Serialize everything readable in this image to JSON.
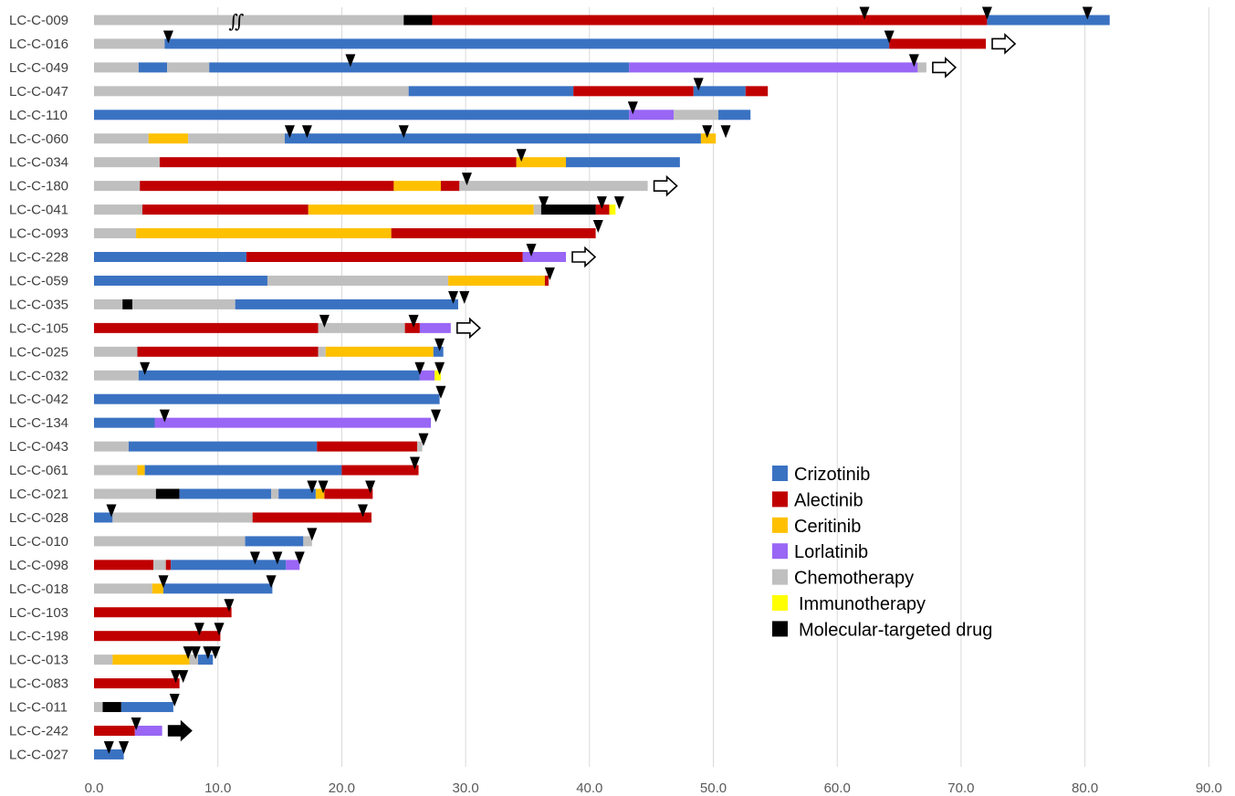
{
  "chart_data": {
    "type": "bar",
    "orientation": "horizontal-stacked",
    "title": "",
    "xlabel": "",
    "ylabel": "",
    "xlim": [
      0,
      90
    ],
    "x_ticks": [
      "0.0",
      "10.0",
      "20.0",
      "30.0",
      "40.0",
      "50.0",
      "60.0",
      "70.0",
      "80.0",
      "90.0"
    ],
    "grid": "vertical",
    "legend_position": "center-right",
    "colors": {
      "Crizotinib": "#3a72c2",
      "Alectinib": "#c00000",
      "Ceritinib": "#ffc000",
      "Lorlatinib": "#9966f5",
      "Chemotherapy": "#bfbfbf",
      "Immunotherapy": "#ffff00",
      "Molecular-targeted drug": "#000000"
    },
    "legend": [
      "Crizotinib",
      "Alectinib",
      "Ceritinib",
      "Lorlatinib",
      "Chemotherapy",
      "Immunotherapy",
      "Molecular-targeted drug"
    ],
    "break_mark": {
      "row": "LC-C-009",
      "x": 11.5,
      "text": "∬"
    },
    "patients": [
      {
        "id": "LC-C-009",
        "segments": [
          [
            "Chemotherapy",
            0,
            25
          ],
          [
            "Molecular-targeted drug",
            25,
            27.3
          ],
          [
            "Alectinib",
            27.3,
            72.1
          ],
          [
            "Crizotinib",
            72.1,
            82
          ]
        ],
        "markers": [
          62.2,
          72.1,
          80.2
        ],
        "arrow": null
      },
      {
        "id": "LC-C-016",
        "segments": [
          [
            "Chemotherapy",
            0,
            5.7
          ],
          [
            "Crizotinib",
            5.7,
            64.2
          ],
          [
            "Alectinib",
            64.2,
            72
          ]
        ],
        "markers": [
          6,
          64.2
        ],
        "arrow": "open"
      },
      {
        "id": "LC-C-049",
        "segments": [
          [
            "Chemotherapy",
            0,
            3.6
          ],
          [
            "Crizotinib",
            3.6,
            5.9
          ],
          [
            "Chemotherapy",
            5.9,
            9.3
          ],
          [
            "Crizotinib",
            9.3,
            43.2
          ],
          [
            "Lorlatinib",
            43.2,
            66.5
          ],
          [
            "Chemotherapy",
            66.5,
            67.2
          ]
        ],
        "markers": [
          20.7,
          66.2
        ],
        "arrow": "open"
      },
      {
        "id": "LC-C-047",
        "segments": [
          [
            "Chemotherapy",
            0,
            25.4
          ],
          [
            "Crizotinib",
            25.4,
            38.7
          ],
          [
            "Alectinib",
            38.7,
            48.4
          ],
          [
            "Crizotinib",
            48.4,
            52.6
          ],
          [
            "Alectinib",
            52.6,
            54.4
          ]
        ],
        "markers": [
          48.8
        ],
        "arrow": null
      },
      {
        "id": "LC-C-110",
        "segments": [
          [
            "Crizotinib",
            0,
            43.2
          ],
          [
            "Lorlatinib",
            43.2,
            46.8
          ],
          [
            "Chemotherapy",
            46.8,
            50.4
          ],
          [
            "Crizotinib",
            50.4,
            53
          ]
        ],
        "markers": [
          43.5
        ],
        "arrow": null
      },
      {
        "id": "LC-C-060",
        "segments": [
          [
            "Chemotherapy",
            0,
            4.4
          ],
          [
            "Ceritinib",
            4.4,
            7.6
          ],
          [
            "Chemotherapy",
            7.6,
            15.4
          ],
          [
            "Crizotinib",
            15.4,
            49
          ],
          [
            "Ceritinib",
            49,
            50.2
          ]
        ],
        "markers": [
          15.8,
          17.2,
          25,
          49.5,
          51
        ],
        "arrow": null
      },
      {
        "id": "LC-C-034",
        "segments": [
          [
            "Chemotherapy",
            0,
            5.3
          ],
          [
            "Alectinib",
            5.3,
            34.1
          ],
          [
            "Ceritinib",
            34.1,
            38.1
          ],
          [
            "Crizotinib",
            38.1,
            47.3
          ]
        ],
        "markers": [
          34.5
        ],
        "arrow": null
      },
      {
        "id": "LC-C-180",
        "segments": [
          [
            "Chemotherapy",
            0,
            3.7
          ],
          [
            "Alectinib",
            3.7,
            24.2
          ],
          [
            "Ceritinib",
            24.2,
            28
          ],
          [
            "Alectinib",
            28,
            29.5
          ],
          [
            "Chemotherapy",
            29.5,
            44.7
          ]
        ],
        "markers": [
          30.1
        ],
        "arrow": "open"
      },
      {
        "id": "LC-C-041",
        "segments": [
          [
            "Chemotherapy",
            0,
            3.9
          ],
          [
            "Alectinib",
            3.9,
            17.3
          ],
          [
            "Ceritinib",
            17.3,
            35.5
          ],
          [
            "Chemotherapy",
            35.5,
            36.1
          ],
          [
            "Molecular-targeted drug",
            36.1,
            40.5
          ],
          [
            "Alectinib",
            40.5,
            41.6
          ],
          [
            "Immunotherapy",
            41.6,
            42.1
          ]
        ],
        "markers": [
          36.3,
          41,
          42.4
        ],
        "arrow": null
      },
      {
        "id": "LC-C-093",
        "segments": [
          [
            "Chemotherapy",
            0,
            3.4
          ],
          [
            "Ceritinib",
            3.4,
            24
          ],
          [
            "Alectinib",
            24,
            40.5
          ]
        ],
        "markers": [
          40.7
        ],
        "arrow": null
      },
      {
        "id": "LC-C-228",
        "segments": [
          [
            "Crizotinib",
            0,
            12.3
          ],
          [
            "Alectinib",
            12.3,
            34.6
          ],
          [
            "Lorlatinib",
            34.6,
            38.1
          ]
        ],
        "markers": [
          35.3
        ],
        "arrow": "open"
      },
      {
        "id": "LC-C-059",
        "segments": [
          [
            "Crizotinib",
            0,
            14
          ],
          [
            "Chemotherapy",
            14,
            28.6
          ],
          [
            "Ceritinib",
            28.6,
            36.4
          ],
          [
            "Alectinib",
            36.4,
            36.7
          ]
        ],
        "markers": [
          36.8
        ],
        "arrow": null
      },
      {
        "id": "LC-C-035",
        "segments": [
          [
            "Chemotherapy",
            0,
            2.3
          ],
          [
            "Molecular-targeted drug",
            2.3,
            3.1
          ],
          [
            "Chemotherapy",
            3.1,
            11.4
          ],
          [
            "Crizotinib",
            11.4,
            29.4
          ]
        ],
        "markers": [
          29,
          29.9
        ],
        "arrow": null
      },
      {
        "id": "LC-C-105",
        "segments": [
          [
            "Alectinib",
            0,
            18.1
          ],
          [
            "Chemotherapy",
            18.1,
            25.1
          ],
          [
            "Alectinib",
            25.1,
            26.3
          ],
          [
            "Lorlatinib",
            26.3,
            28.8
          ]
        ],
        "markers": [
          18.6,
          25.8
        ],
        "arrow": "open"
      },
      {
        "id": "LC-C-025",
        "segments": [
          [
            "Chemotherapy",
            0,
            3.5
          ],
          [
            "Alectinib",
            3.5,
            18.1
          ],
          [
            "Chemotherapy",
            18.1,
            18.7
          ],
          [
            "Ceritinib",
            18.7,
            27.4
          ],
          [
            "Crizotinib",
            27.4,
            28.2
          ]
        ],
        "markers": [
          27.9
        ],
        "arrow": null
      },
      {
        "id": "LC-C-032",
        "segments": [
          [
            "Chemotherapy",
            0,
            3.6
          ],
          [
            "Crizotinib",
            3.6,
            26.3
          ],
          [
            "Lorlatinib",
            26.3,
            27.5
          ],
          [
            "Immunotherapy",
            27.5,
            28
          ]
        ],
        "markers": [
          4.1,
          26.3,
          27.9
        ],
        "arrow": null
      },
      {
        "id": "LC-C-042",
        "segments": [
          [
            "Crizotinib",
            0,
            27.9
          ]
        ],
        "markers": [
          28
        ],
        "arrow": null
      },
      {
        "id": "LC-C-134",
        "segments": [
          [
            "Crizotinib",
            0,
            4.9
          ],
          [
            "Lorlatinib",
            4.9,
            27.2
          ]
        ],
        "markers": [
          5.7,
          27.6
        ],
        "arrow": null
      },
      {
        "id": "LC-C-043",
        "segments": [
          [
            "Chemotherapy",
            0,
            2.8
          ],
          [
            "Crizotinib",
            2.8,
            18
          ],
          [
            "Alectinib",
            18,
            26.1
          ],
          [
            "Chemotherapy",
            26.1,
            26.5
          ]
        ],
        "markers": [
          26.6
        ],
        "arrow": null
      },
      {
        "id": "LC-C-061",
        "segments": [
          [
            "Chemotherapy",
            0,
            3.5
          ],
          [
            "Ceritinib",
            3.5,
            4.1
          ],
          [
            "Crizotinib",
            4.1,
            20
          ],
          [
            "Alectinib",
            20,
            26.2
          ]
        ],
        "markers": [
          25.9
        ],
        "arrow": null
      },
      {
        "id": "LC-C-021",
        "segments": [
          [
            "Chemotherapy",
            0,
            5
          ],
          [
            "Molecular-targeted drug",
            5,
            6.9
          ],
          [
            "Crizotinib",
            6.9,
            14.3
          ],
          [
            "Chemotherapy",
            14.3,
            14.9
          ],
          [
            "Crizotinib",
            14.9,
            17.9
          ],
          [
            "Ceritinib",
            17.9,
            18.6
          ],
          [
            "Alectinib",
            18.6,
            22.5
          ]
        ],
        "markers": [
          17.6,
          18.5,
          22.3
        ],
        "arrow": null
      },
      {
        "id": "LC-C-028",
        "segments": [
          [
            "Crizotinib",
            0,
            1.5
          ],
          [
            "Chemotherapy",
            1.5,
            12.8
          ],
          [
            "Alectinib",
            12.8,
            22.4
          ]
        ],
        "markers": [
          1.4,
          21.7
        ],
        "arrow": null
      },
      {
        "id": "LC-C-010",
        "segments": [
          [
            "Chemotherapy",
            0,
            12.2
          ],
          [
            "Crizotinib",
            12.2,
            16.9
          ],
          [
            "Chemotherapy",
            16.9,
            17.6
          ]
        ],
        "markers": [
          17.6
        ],
        "arrow": null
      },
      {
        "id": "LC-C-098",
        "segments": [
          [
            "Alectinib",
            0,
            4.8
          ],
          [
            "Chemotherapy",
            4.8,
            5.8
          ],
          [
            "Alectinib",
            5.8,
            6.2
          ],
          [
            "Crizotinib",
            6.2,
            15.5
          ],
          [
            "Lorlatinib",
            15.5,
            16.6
          ]
        ],
        "markers": [
          13,
          14.8,
          16.6
        ],
        "arrow": null
      },
      {
        "id": "LC-C-018",
        "segments": [
          [
            "Chemotherapy",
            0,
            4.7
          ],
          [
            "Ceritinib",
            4.7,
            5.6
          ],
          [
            "Crizotinib",
            5.6,
            14.4
          ]
        ],
        "markers": [
          5.6,
          14.3
        ],
        "arrow": null
      },
      {
        "id": "LC-C-103",
        "segments": [
          [
            "Alectinib",
            0,
            11.1
          ]
        ],
        "markers": [
          10.9
        ],
        "arrow": null
      },
      {
        "id": "LC-C-198",
        "segments": [
          [
            "Alectinib",
            0,
            10.2
          ]
        ],
        "markers": [
          8.5,
          10.1
        ],
        "arrow": null
      },
      {
        "id": "LC-C-013",
        "segments": [
          [
            "Chemotherapy",
            0,
            1.5
          ],
          [
            "Ceritinib",
            1.5,
            7.7
          ],
          [
            "Chemotherapy",
            7.7,
            8.4
          ],
          [
            "Crizotinib",
            8.4,
            9.6
          ]
        ],
        "markers": [
          7.6,
          8.2,
          9.2,
          9.8
        ],
        "arrow": null
      },
      {
        "id": "LC-C-083",
        "segments": [
          [
            "Alectinib",
            0,
            6.9
          ]
        ],
        "markers": [
          6.6,
          7.2
        ],
        "arrow": null
      },
      {
        "id": "LC-C-011",
        "segments": [
          [
            "Chemotherapy",
            0,
            0.7
          ],
          [
            "Molecular-targeted drug",
            0.7,
            2.2
          ],
          [
            "Crizotinib",
            2.2,
            6.4
          ]
        ],
        "markers": [
          6.5
        ],
        "arrow": null
      },
      {
        "id": "LC-C-242",
        "segments": [
          [
            "Alectinib",
            0,
            3.3
          ],
          [
            "Lorlatinib",
            3.3,
            5.5
          ]
        ],
        "markers": [
          3.4
        ],
        "arrow": "filled"
      },
      {
        "id": "LC-C-027",
        "segments": [
          [
            "Crizotinib",
            0,
            2.4
          ]
        ],
        "markers": [
          1.2,
          2.4
        ],
        "arrow": null
      }
    ]
  }
}
